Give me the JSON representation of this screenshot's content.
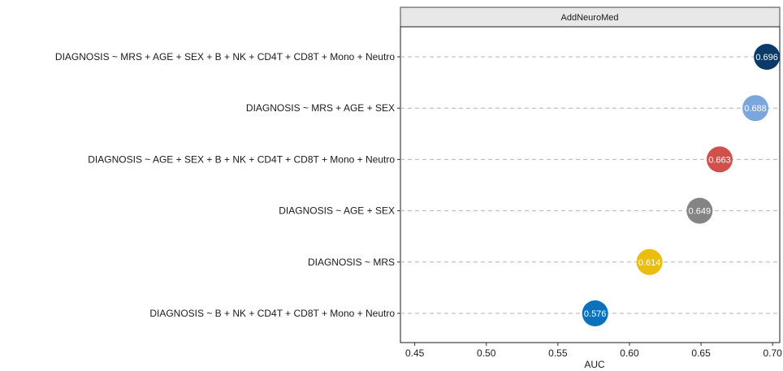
{
  "chart_data": {
    "type": "dot",
    "panel_title": "AddNeuroMed",
    "xlabel": "AUC",
    "ylabel": "",
    "xlim": [
      0.44,
      0.705
    ],
    "xticks": [
      "0.45",
      "0.50",
      "0.55",
      "0.60",
      "0.65",
      "0.70"
    ],
    "grid": "dashed horizontal guides per row",
    "categories": [
      "DIAGNOSIS ~ MRS + AGE + SEX + B + NK + CD4T + CD8T + Mono + Neutro",
      "DIAGNOSIS ~ MRS + AGE + SEX",
      "DIAGNOSIS ~ AGE + SEX + B + NK + CD4T + CD8T + Mono + Neutro",
      "DIAGNOSIS ~ AGE + SEX",
      "DIAGNOSIS ~ MRS",
      "DIAGNOSIS ~ B + NK + CD4T + CD8T + Mono + Neutro"
    ],
    "values": [
      0.696,
      0.688,
      0.663,
      0.649,
      0.614,
      0.576
    ],
    "labels": [
      "0.696",
      "0.688",
      "0.663",
      "0.649",
      "0.614",
      "0.576"
    ],
    "colors": [
      "#0b3a6a",
      "#7aa6dc",
      "#d0504b",
      "#848484",
      "#eabd0e",
      "#0a72bd"
    ]
  }
}
